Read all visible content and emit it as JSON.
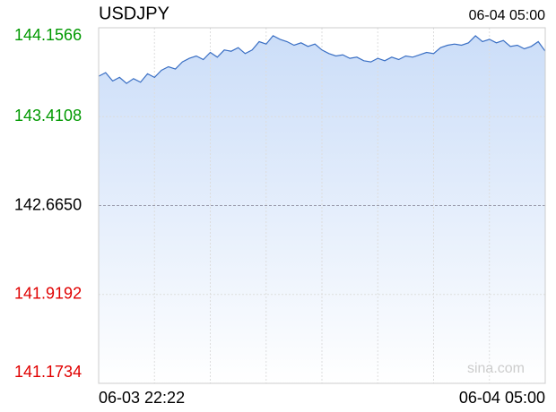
{
  "chart_data": {
    "type": "area",
    "title": "USDJPY",
    "timestamp": "06-04 05:00",
    "x_axis_labels": [
      "06-03 22:22",
      "06-04 05:00"
    ],
    "values": [
      143.75,
      143.78,
      143.71,
      143.74,
      143.69,
      143.73,
      143.7,
      143.77,
      143.74,
      143.8,
      143.83,
      143.81,
      143.87,
      143.9,
      143.92,
      143.89,
      143.95,
      143.91,
      143.97,
      143.96,
      143.99,
      143.94,
      143.97,
      144.04,
      144.02,
      144.09,
      144.06,
      144.04,
      144.01,
      144.03,
      144.0,
      144.02,
      143.97,
      143.94,
      143.92,
      143.93,
      143.9,
      143.91,
      143.88,
      143.87,
      143.9,
      143.88,
      143.91,
      143.89,
      143.92,
      143.91,
      143.93,
      143.95,
      143.94,
      143.99,
      144.01,
      144.02,
      144.01,
      144.03,
      144.09,
      144.04,
      144.06,
      144.03,
      144.05,
      144.0,
      144.01,
      143.98,
      144.0,
      144.04,
      143.96
    ],
    "color": "#3a6fc4",
    "fill_color": "#c9dcf8",
    "ylim": [
      141.1734,
      144.1566
    ],
    "yticks": [
      141.1734,
      141.9192,
      {
        "value": 142.665,
        "label": "142.6650"
      },
      143.4108,
      144.1566
    ],
    "up_color": "#009900",
    "down_color": "#e00000",
    "level_color": "#000000",
    "watermark": "sina.com",
    "grid": true
  }
}
